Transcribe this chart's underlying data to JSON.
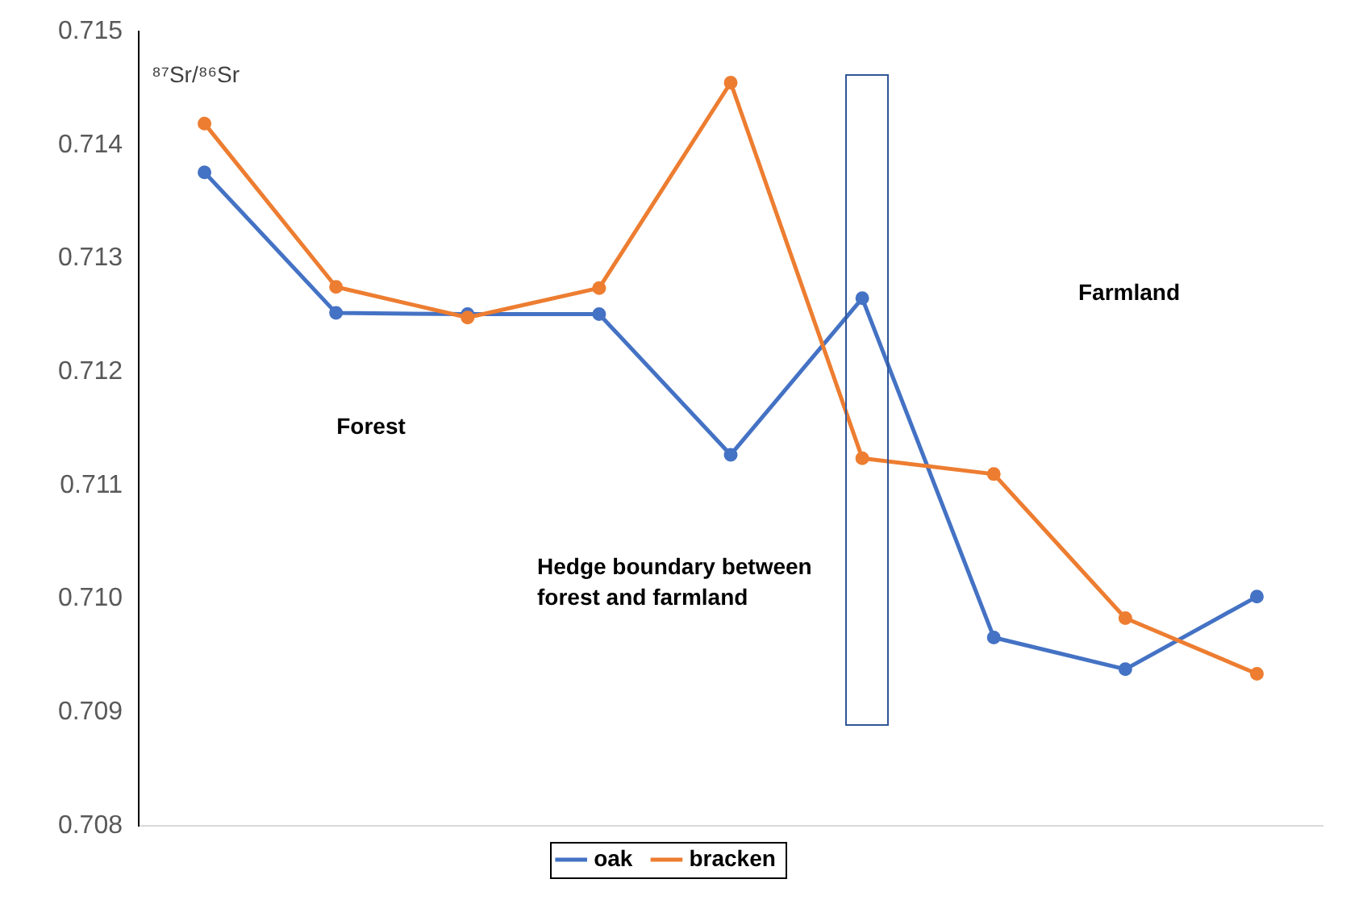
{
  "chart_data": {
    "type": "line",
    "ylabel": "⁸⁷Sr/⁸⁶Sr",
    "categories": [
      null,
      null,
      null,
      null,
      null,
      null,
      null,
      null,
      null
    ],
    "series": [
      {
        "name": "oak",
        "color": "#4472c4",
        "values": [
          0.71376,
          0.71252,
          0.71251,
          0.71251,
          0.71127,
          0.71265,
          0.70966,
          0.70938,
          0.71002
        ]
      },
      {
        "name": "bracken",
        "color": "#ed7d31",
        "values": [
          0.71419,
          0.71275,
          0.71248,
          0.71274,
          0.71455,
          0.71124,
          0.7111,
          0.70983,
          0.70934
        ]
      }
    ],
    "ylim": [
      0.708,
      0.715
    ],
    "yticks": [
      {
        "value": 0.708,
        "label": "0.708"
      },
      {
        "value": 0.709,
        "label": "0.709"
      },
      {
        "value": 0.71,
        "label": "0.710"
      },
      {
        "value": 0.711,
        "label": "0.711"
      },
      {
        "value": 0.712,
        "label": "0.712"
      },
      {
        "value": 0.713,
        "label": "0.713"
      },
      {
        "value": 0.714,
        "label": "0.714"
      },
      {
        "value": 0.715,
        "label": "0.715"
      }
    ],
    "annotations": [
      "Forest",
      "Farmland",
      "Hedge boundary between\nforest and farmland"
    ],
    "grid": false,
    "legend": "bottom",
    "marker": "circle",
    "line_style": "solid"
  }
}
